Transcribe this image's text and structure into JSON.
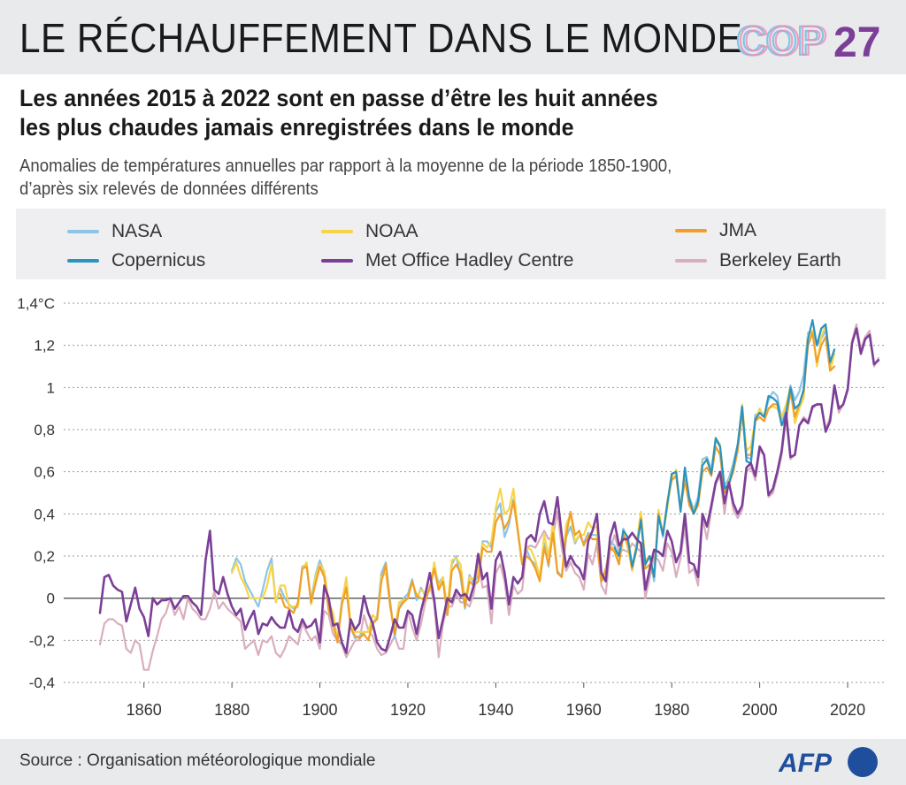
{
  "header": {
    "title": "LE RÉCHAUFFEMENT DANS LE MONDE",
    "logo_text_a": "COP",
    "logo_text_b": "27"
  },
  "headline": {
    "line1": "Les années 2015 à 2022 sont en passe d’être les huit années",
    "line2": "les plus chaudes jamais enregistrées dans le monde"
  },
  "subtitle": {
    "line1": "Anomalies de températures annuelles par rapport à la moyenne de la période 1850-1900,",
    "line2": "d’après six relevés de données différents"
  },
  "footer": {
    "source": "Source : Organisation météorologique mondiale",
    "brand": "AFP"
  },
  "colors": {
    "NASA": "#8ec4e6",
    "NOAA": "#f7d54a",
    "JMA": "#f0a02a",
    "Copernicus": "#2b93bf",
    "MetOffice": "#7b3f98",
    "Berkeley": "#d9aebd",
    "cop_purple": "#7b3f98"
  },
  "chart_data": {
    "type": "line",
    "ylabel": "",
    "xlabel": "",
    "xlim": [
      1850,
      2022
    ],
    "ylim": [
      -0.4,
      1.4
    ],
    "xticks": [
      "1860",
      "1880",
      "1900",
      "1920",
      "1940",
      "1960",
      "1980",
      "2000",
      "2020"
    ],
    "yticks": [
      "1,4°C",
      "1,2",
      "1",
      "0,8",
      "0,6",
      "0,4",
      "0,2",
      "0",
      "-0,2",
      "-0,4"
    ],
    "ytick_values": [
      1.4,
      1.2,
      1.0,
      0.8,
      0.6,
      0.4,
      0.2,
      0,
      -0.2,
      -0.4
    ],
    "grid": "horizontal dotted",
    "legend_position": "top",
    "series": [
      {
        "name": "NASA",
        "color_key": "NASA",
        "start": 1880,
        "values": [
          0.13,
          0.19,
          0.16,
          0.08,
          0.04,
          0.0,
          -0.04,
          0.04,
          0.13,
          0.19,
          -0.02,
          0.05,
          0.0,
          -0.03,
          -0.05,
          -0.04,
          0.15,
          0.16,
          -0.01,
          0.11,
          0.18,
          0.12,
          -0.04,
          -0.1,
          -0.2,
          -0.01,
          0.08,
          -0.14,
          -0.19,
          -0.18,
          -0.16,
          -0.16,
          -0.12,
          -0.09,
          0.12,
          0.17,
          -0.02,
          -0.19,
          -0.05,
          0.0,
          0.02,
          0.09,
          -0.01,
          0.05,
          0.01,
          0.04,
          0.15,
          0.07,
          0.1,
          -0.08,
          0.16,
          0.2,
          0.1,
          -0.05,
          0.11,
          0.07,
          0.11,
          0.27,
          0.27,
          0.24,
          0.41,
          0.45,
          0.29,
          0.35,
          0.47,
          0.32,
          0.16,
          0.23,
          0.18,
          0.16,
          0.1,
          0.26,
          0.15,
          0.32,
          0.13,
          0.1,
          0.29,
          0.34,
          0.26,
          0.3,
          0.26,
          0.31,
          0.3,
          0.3,
          0.08,
          0.13,
          0.27,
          0.25,
          0.18,
          0.33,
          0.28,
          0.14,
          0.26,
          0.39,
          0.16,
          0.2,
          0.08,
          0.4,
          0.29,
          0.45,
          0.58,
          0.6,
          0.43,
          0.6,
          0.48,
          0.42,
          0.48,
          0.66,
          0.67,
          0.61,
          0.75,
          0.72,
          0.53,
          0.57,
          0.64,
          0.73,
          0.88,
          0.67,
          0.66,
          0.87,
          0.88,
          0.86,
          0.94,
          0.98,
          0.96,
          0.85,
          0.89,
          1.01,
          0.94,
          0.98,
          1.06,
          1.26,
          1.26,
          1.2,
          1.23,
          1.27,
          1.1,
          1.18
        ]
      },
      {
        "name": "NOAA",
        "color_key": "NOAA",
        "start": 1880,
        "values": [
          0.12,
          0.17,
          0.1,
          0.06,
          0.0,
          0.0,
          0.0,
          0.0,
          0.06,
          0.16,
          -0.02,
          0.06,
          0.06,
          -0.04,
          -0.04,
          -0.04,
          0.14,
          0.17,
          -0.03,
          0.1,
          0.16,
          0.13,
          -0.02,
          -0.07,
          -0.2,
          -0.02,
          0.1,
          -0.12,
          -0.16,
          -0.16,
          -0.16,
          -0.16,
          -0.08,
          -0.1,
          0.1,
          0.12,
          -0.04,
          -0.16,
          -0.02,
          -0.01,
          0.0,
          0.08,
          0.01,
          0.04,
          0.02,
          0.04,
          0.17,
          0.05,
          0.1,
          -0.05,
          0.18,
          0.19,
          0.16,
          -0.02,
          0.1,
          0.09,
          0.12,
          0.26,
          0.24,
          0.27,
          0.43,
          0.52,
          0.4,
          0.42,
          0.52,
          0.33,
          0.17,
          0.24,
          0.23,
          0.18,
          0.1,
          0.3,
          0.2,
          0.36,
          0.12,
          0.1,
          0.35,
          0.4,
          0.27,
          0.3,
          0.3,
          0.36,
          0.33,
          0.34,
          0.08,
          0.1,
          0.25,
          0.23,
          0.18,
          0.31,
          0.24,
          0.13,
          0.26,
          0.41,
          0.18,
          0.2,
          0.1,
          0.42,
          0.3,
          0.43,
          0.57,
          0.61,
          0.42,
          0.6,
          0.46,
          0.42,
          0.45,
          0.64,
          0.65,
          0.6,
          0.76,
          0.73,
          0.5,
          0.55,
          0.62,
          0.72,
          0.92,
          0.7,
          0.72,
          0.85,
          0.9,
          0.86,
          0.9,
          0.91,
          0.9,
          0.86,
          0.92,
          1.0,
          0.83,
          0.9,
          0.95,
          1.25,
          1.27,
          1.1,
          1.24,
          1.3,
          1.08,
          1.16
        ]
      },
      {
        "name": "JMA",
        "color_key": "JMA",
        "start": 1891,
        "values": [
          0.02,
          -0.04,
          -0.05,
          -0.07,
          -0.02,
          0.14,
          0.15,
          -0.02,
          0.07,
          0.15,
          0.1,
          -0.06,
          -0.12,
          -0.21,
          -0.03,
          0.05,
          -0.14,
          -0.18,
          -0.19,
          -0.17,
          -0.2,
          -0.12,
          -0.1,
          0.08,
          0.16,
          -0.04,
          -0.17,
          -0.05,
          -0.02,
          0.0,
          0.08,
          0.01,
          0.0,
          -0.01,
          0.05,
          0.14,
          0.04,
          0.08,
          -0.08,
          0.13,
          0.16,
          0.12,
          -0.04,
          0.08,
          0.06,
          0.08,
          0.24,
          0.22,
          0.22,
          0.36,
          0.4,
          0.33,
          0.37,
          0.46,
          0.32,
          0.16,
          0.2,
          0.18,
          0.14,
          0.08,
          0.24,
          0.16,
          0.31,
          0.12,
          0.1,
          0.3,
          0.41,
          0.3,
          0.32,
          0.25,
          0.3,
          0.28,
          0.28,
          0.08,
          0.14,
          0.24,
          0.22,
          0.16,
          0.3,
          0.26,
          0.14,
          0.23,
          0.38,
          0.14,
          0.16,
          0.1,
          0.4,
          0.3,
          0.46,
          0.56,
          0.58,
          0.42,
          0.56,
          0.44,
          0.4,
          0.44,
          0.6,
          0.62,
          0.58,
          0.72,
          0.68,
          0.5,
          0.54,
          0.6,
          0.7,
          0.88,
          0.68,
          0.68,
          0.84,
          0.86,
          0.84,
          0.9,
          0.92,
          0.92,
          0.82,
          0.84,
          0.98,
          0.86,
          0.92,
          0.98,
          1.2,
          1.26,
          1.12,
          1.2,
          1.24,
          1.08,
          1.1
        ]
      },
      {
        "name": "Copernicus",
        "color_key": "Copernicus",
        "start": 1967,
        "values": [
          0.24,
          0.2,
          0.32,
          0.29,
          0.15,
          0.24,
          0.37,
          0.16,
          0.2,
          0.1,
          0.39,
          0.3,
          0.45,
          0.59,
          0.6,
          0.41,
          0.62,
          0.47,
          0.4,
          0.46,
          0.63,
          0.66,
          0.59,
          0.76,
          0.72,
          0.52,
          0.54,
          0.62,
          0.73,
          0.91,
          0.65,
          0.64,
          0.85,
          0.88,
          0.86,
          0.96,
          0.95,
          0.93,
          0.82,
          0.88,
          1.0,
          0.9,
          0.92,
          0.99,
          1.23,
          1.32,
          1.2,
          1.28,
          1.3,
          1.12,
          1.18
        ]
      },
      {
        "name": "Met Office Hadley Centre",
        "color_key": "MetOffice",
        "start": 1850,
        "values": [
          -0.07,
          0.1,
          0.11,
          0.06,
          0.04,
          0.03,
          -0.11,
          -0.03,
          0.05,
          -0.05,
          -0.09,
          -0.18,
          0.0,
          -0.03,
          -0.01,
          -0.01,
          0.0,
          -0.05,
          -0.02,
          0.01,
          0.01,
          -0.02,
          -0.04,
          -0.08,
          0.18,
          0.32,
          0.04,
          0.02,
          0.1,
          0.02,
          -0.04,
          -0.08,
          -0.05,
          -0.15,
          -0.1,
          -0.06,
          -0.17,
          -0.12,
          -0.13,
          -0.09,
          -0.12,
          -0.14,
          -0.14,
          -0.06,
          -0.14,
          -0.16,
          -0.1,
          -0.14,
          -0.13,
          -0.1,
          -0.21,
          0.06,
          0.0,
          -0.13,
          -0.12,
          -0.21,
          -0.26,
          -0.1,
          -0.15,
          -0.12,
          0.01,
          -0.07,
          -0.12,
          -0.21,
          -0.24,
          -0.25,
          -0.18,
          -0.1,
          -0.14,
          -0.14,
          -0.06,
          -0.08,
          -0.17,
          -0.06,
          0.02,
          0.12,
          -0.01,
          -0.19,
          -0.1,
          0.0,
          -0.02,
          0.04,
          0.01,
          0.02,
          -0.01,
          0.06,
          0.21,
          0.09,
          0.12,
          -0.05,
          0.18,
          0.22,
          0.12,
          -0.03,
          0.1,
          0.07,
          0.1,
          0.28,
          0.3,
          0.27,
          0.4,
          0.46,
          0.36,
          0.35,
          0.48,
          0.3,
          0.15,
          0.2,
          0.16,
          0.14,
          0.09,
          0.27,
          0.32,
          0.4,
          0.12,
          0.08,
          0.29,
          0.36,
          0.25,
          0.28,
          0.28,
          0.31,
          0.28,
          0.26,
          0.04,
          0.14,
          0.23,
          0.22,
          0.2,
          0.32,
          0.27,
          0.17,
          0.22,
          0.4,
          0.17,
          0.16,
          0.1,
          0.4,
          0.34,
          0.44,
          0.55,
          0.6,
          0.45,
          0.55,
          0.45,
          0.4,
          0.44,
          0.62,
          0.64,
          0.58,
          0.72,
          0.68,
          0.49,
          0.52,
          0.6,
          0.7,
          0.88,
          0.67,
          0.68,
          0.82,
          0.85,
          0.83,
          0.91,
          0.92,
          0.92,
          0.79,
          0.84,
          1.01,
          0.9,
          0.92,
          0.99,
          1.21,
          1.28,
          1.16,
          1.23,
          1.25,
          1.11,
          1.13
        ]
      },
      {
        "name": "Berkeley Earth",
        "color_key": "Berkeley",
        "start": 1850,
        "values": [
          -0.22,
          -0.12,
          -0.1,
          -0.1,
          -0.12,
          -0.13,
          -0.24,
          -0.26,
          -0.2,
          -0.22,
          -0.34,
          -0.34,
          -0.25,
          -0.18,
          -0.1,
          -0.07,
          0.0,
          -0.08,
          -0.04,
          -0.1,
          0.0,
          -0.05,
          -0.07,
          -0.1,
          -0.1,
          -0.05,
          0.03,
          -0.05,
          -0.02,
          -0.05,
          -0.07,
          -0.09,
          -0.11,
          -0.24,
          -0.22,
          -0.2,
          -0.27,
          -0.2,
          -0.21,
          -0.18,
          -0.26,
          -0.28,
          -0.24,
          -0.18,
          -0.2,
          -0.22,
          -0.12,
          -0.16,
          -0.2,
          -0.18,
          -0.24,
          -0.06,
          -0.08,
          -0.17,
          -0.2,
          -0.22,
          -0.28,
          -0.24,
          -0.2,
          -0.2,
          -0.08,
          -0.15,
          -0.18,
          -0.24,
          -0.27,
          -0.26,
          -0.22,
          -0.18,
          -0.24,
          -0.24,
          -0.06,
          -0.14,
          -0.2,
          -0.12,
          -0.02,
          0.06,
          -0.02,
          -0.28,
          -0.12,
          -0.04,
          -0.04,
          0.02,
          -0.02,
          -0.02,
          -0.04,
          0.02,
          0.18,
          0.05,
          0.06,
          -0.12,
          0.12,
          0.16,
          0.08,
          -0.08,
          0.06,
          0.02,
          0.04,
          0.24,
          0.25,
          0.24,
          0.28,
          0.32,
          0.28,
          0.29,
          0.41,
          0.24,
          0.13,
          0.17,
          0.12,
          0.1,
          0.04,
          0.21,
          0.16,
          0.26,
          0.06,
          0.02,
          0.23,
          0.3,
          0.22,
          0.23,
          0.22,
          0.26,
          0.24,
          0.22,
          0.0,
          0.1,
          0.2,
          0.18,
          0.13,
          0.26,
          0.22,
          0.1,
          0.19,
          0.34,
          0.12,
          0.14,
          0.06,
          0.38,
          0.28,
          0.42,
          0.54,
          0.58,
          0.4,
          0.56,
          0.42,
          0.38,
          0.42,
          0.6,
          0.62,
          0.56,
          0.7,
          0.68,
          0.48,
          0.5,
          0.58,
          0.68,
          0.86,
          0.66,
          0.68,
          0.82,
          0.86,
          0.84,
          0.9,
          0.92,
          0.92,
          0.8,
          0.86,
          1.0,
          0.88,
          0.92,
          1.0,
          1.22,
          1.3,
          1.18,
          1.24,
          1.27,
          1.1,
          1.14
        ]
      }
    ]
  }
}
